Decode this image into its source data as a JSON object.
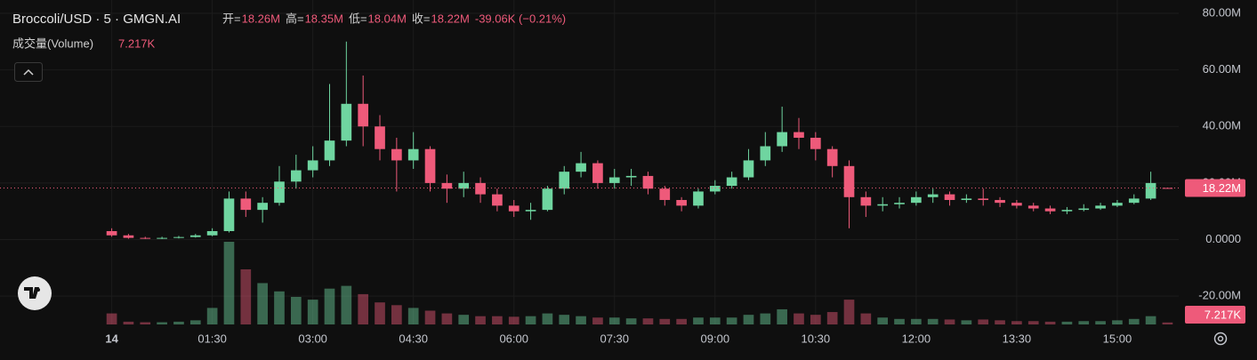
{
  "chart_data": {
    "type": "candlestick",
    "legend": {
      "symbol": "Broccoli/USD · 5 · GMGN.AI",
      "items": [
        {
          "key": "开=",
          "value": "18.26M"
        },
        {
          "key": "高=",
          "value": "18.35M"
        },
        {
          "key": "低=",
          "value": "18.04M"
        },
        {
          "key": "收=",
          "value": "18.22M"
        }
      ],
      "change": "-39.06K (−0.21%)",
      "volume_name": "成交量(Volume)"
    },
    "last_price_label": "18.22M",
    "volume_label": "7.217K",
    "x": [
      0,
      15,
      30,
      45,
      60,
      75,
      90,
      105,
      120,
      135,
      150,
      165,
      180,
      195,
      210,
      225,
      240,
      255,
      270,
      285,
      300,
      315,
      330,
      345,
      360,
      375,
      390,
      405,
      420,
      435,
      450,
      465,
      480,
      495,
      510,
      525,
      540,
      555,
      570,
      585,
      600,
      615,
      630,
      645,
      660,
      675,
      690,
      705,
      720,
      735,
      750,
      765,
      780,
      795,
      810,
      825,
      840,
      855,
      870,
      885,
      900,
      915,
      930,
      945
    ],
    "open": [
      3,
      1.5,
      0.6,
      0.4,
      0.6,
      0.9,
      1.5,
      3,
      14.5,
      10.5,
      13,
      20.5,
      24.5,
      28,
      35,
      48,
      40,
      32,
      28,
      32,
      20,
      18,
      20,
      16,
      12,
      10,
      10.5,
      18,
      24,
      27,
      20,
      22,
      22.5,
      18,
      14,
      12,
      17,
      19,
      22,
      28,
      33,
      38,
      36,
      32,
      26,
      15,
      12,
      12.5,
      13,
      15,
      16,
      14,
      14.5,
      14,
      13,
      12,
      11,
      10,
      10.5,
      11,
      12,
      13,
      14.5,
      18.26
    ],
    "high": [
      4,
      2,
      1,
      1,
      1.3,
      2,
      4,
      17,
      17,
      15,
      26,
      30,
      33,
      55,
      70,
      58,
      44,
      36,
      38,
      33,
      23,
      24,
      22,
      18,
      14,
      13,
      19,
      26,
      31,
      28,
      25,
      25,
      24,
      19,
      15,
      18,
      21,
      24,
      32,
      38,
      47,
      43,
      38,
      33,
      28,
      17,
      15,
      15,
      17,
      18,
      17,
      16,
      18,
      15,
      14,
      13,
      12,
      11.5,
      12.5,
      13,
      14,
      16,
      24,
      18.35
    ],
    "low": [
      1,
      0.3,
      0.2,
      0.2,
      0.4,
      0.7,
      1.2,
      2.5,
      8,
      6,
      12,
      18,
      22,
      26,
      33,
      33,
      28,
      17,
      25,
      17,
      13,
      15,
      13,
      10,
      8,
      7,
      10,
      16,
      22,
      18,
      18,
      19,
      16,
      12,
      10,
      11,
      16,
      18,
      21,
      26,
      31,
      32,
      28,
      22,
      4,
      8,
      10,
      11,
      12,
      13,
      12,
      13,
      12,
      11.5,
      11,
      10,
      9,
      9,
      10,
      10.5,
      11.5,
      12.5,
      14,
      18.04
    ],
    "close": [
      1.5,
      0.6,
      0.4,
      0.6,
      0.9,
      1.5,
      3,
      14.5,
      10.5,
      13,
      20.5,
      24.5,
      28,
      35,
      48,
      40,
      32,
      28,
      32,
      20,
      18,
      20,
      16,
      12,
      10,
      10.5,
      18,
      24,
      27,
      20,
      22,
      22.5,
      18,
      14,
      12,
      17,
      19,
      22,
      28,
      33,
      38,
      36,
      32,
      26,
      15,
      12,
      12.5,
      13,
      15,
      16,
      14,
      14.5,
      14,
      13,
      12,
      11,
      10,
      10.5,
      11,
      12,
      13,
      14.5,
      20,
      18.22
    ],
    "volume": [
      40,
      10,
      8,
      8,
      10,
      15,
      60,
      300,
      200,
      150,
      120,
      100,
      90,
      130,
      140,
      110,
      80,
      70,
      60,
      50,
      40,
      35,
      30,
      30,
      28,
      30,
      40,
      35,
      30,
      25,
      25,
      22,
      22,
      20,
      20,
      25,
      25,
      25,
      35,
      40,
      55,
      40,
      35,
      45,
      90,
      40,
      25,
      20,
      20,
      20,
      18,
      15,
      18,
      15,
      12,
      12,
      10,
      10,
      12,
      12,
      15,
      20,
      30,
      7.217
    ],
    "up_color": "#6fd5a0",
    "down_color": "#ee5a7a",
    "xlim": [
      -100,
      955
    ],
    "xticks": [
      {
        "value": 0,
        "label": "14"
      },
      {
        "value": 90,
        "label": "01:30"
      },
      {
        "value": 180,
        "label": "03:00"
      },
      {
        "value": 270,
        "label": "04:30"
      },
      {
        "value": 360,
        "label": "06:00"
      },
      {
        "value": 450,
        "label": "07:30"
      },
      {
        "value": 540,
        "label": "09:00"
      },
      {
        "value": 630,
        "label": "10:30"
      },
      {
        "value": 720,
        "label": "12:00"
      },
      {
        "value": 810,
        "label": "13:30"
      },
      {
        "value": 900,
        "label": "15:00"
      }
    ],
    "ylim": [
      -30,
      84.7
    ],
    "yticks": [
      {
        "value": 80,
        "label": "80.00M"
      },
      {
        "value": 60,
        "label": "60.00M"
      },
      {
        "value": 40,
        "label": "40.00M"
      },
      {
        "value": 20,
        "label": "20.00M"
      },
      {
        "value": 0,
        "label": "0.0000"
      },
      {
        "value": -20,
        "label": "-20.00M"
      }
    ],
    "grid": true
  }
}
